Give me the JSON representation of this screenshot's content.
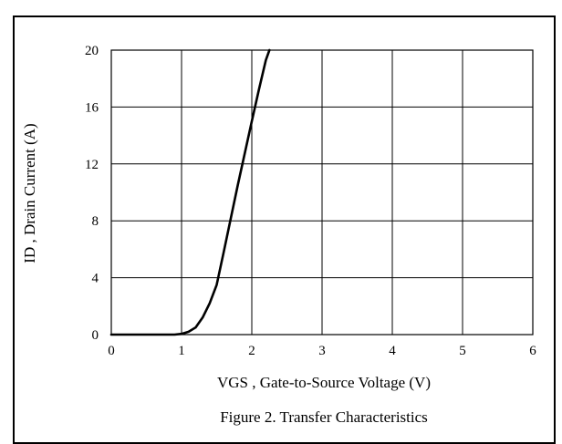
{
  "chart_data": {
    "type": "line",
    "title": "Figure 2. Transfer Characteristics",
    "xlabel": "VGS , Gate-to-Source Voltage (V)",
    "ylabel": "ID , Drain Current (A)",
    "xlim": [
      0,
      6
    ],
    "ylim": [
      0,
      20
    ],
    "x_ticks": [
      0,
      1,
      2,
      3,
      4,
      5,
      6
    ],
    "y_ticks": [
      0,
      4,
      8,
      12,
      16,
      20
    ],
    "grid": true,
    "series": [
      {
        "name": "",
        "x": [
          0.0,
          0.5,
          0.9,
          1.0,
          1.1,
          1.2,
          1.3,
          1.4,
          1.5,
          1.6,
          1.8,
          2.0,
          2.1,
          2.2,
          2.25
        ],
        "y": [
          0.0,
          0.0,
          0.0,
          0.05,
          0.2,
          0.5,
          1.2,
          2.2,
          3.5,
          5.8,
          10.5,
          15.0,
          17.2,
          19.3,
          20.0
        ]
      }
    ]
  }
}
